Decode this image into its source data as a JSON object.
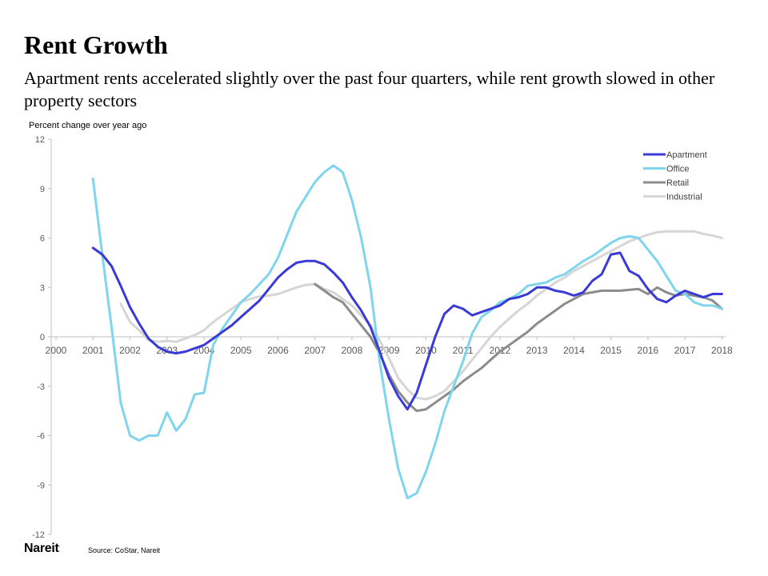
{
  "header": {
    "title": "Rent Growth",
    "subtitle": "Apartment rents accelerated slightly over the past four quarters, while rent growth slowed in other property sectors"
  },
  "footer": {
    "logo_text": "Nareit",
    "logo_mark": ".",
    "source": "Source: CoStar, Nareit"
  },
  "chart_data": {
    "type": "line",
    "title": "",
    "ylabel": "Percent change over year ago",
    "xlabel": "",
    "xlim": [
      2000,
      2018.1
    ],
    "ylim": [
      -12,
      12
    ],
    "x_ticks": [
      2000,
      2001,
      2002,
      2003,
      2004,
      2005,
      2006,
      2007,
      2008,
      2009,
      2010,
      2011,
      2012,
      2013,
      2014,
      2015,
      2016,
      2017,
      2018
    ],
    "y_ticks": [
      12,
      9,
      6,
      3,
      0,
      -3,
      -6,
      -9,
      -12
    ],
    "grid": false,
    "legend_position": "top-right",
    "series": [
      {
        "name": "Apartment",
        "color": "#3a3ad6",
        "x": [
          2001.0,
          2001.25,
          2001.5,
          2001.75,
          2002.0,
          2002.25,
          2002.5,
          2002.75,
          2003.0,
          2003.25,
          2003.5,
          2003.75,
          2004.0,
          2004.25,
          2004.5,
          2004.75,
          2005.0,
          2005.25,
          2005.5,
          2005.75,
          2006.0,
          2006.25,
          2006.5,
          2006.75,
          2007.0,
          2007.25,
          2007.5,
          2007.75,
          2008.0,
          2008.25,
          2008.5,
          2008.75,
          2009.0,
          2009.25,
          2009.5,
          2009.75,
          2010.0,
          2010.25,
          2010.5,
          2010.75,
          2011.0,
          2011.25,
          2011.5,
          2011.75,
          2012.0,
          2012.25,
          2012.5,
          2012.75,
          2013.0,
          2013.25,
          2013.5,
          2013.75,
          2014.0,
          2014.25,
          2014.5,
          2014.75,
          2015.0,
          2015.25,
          2015.5,
          2015.75,
          2016.0,
          2016.25,
          2016.5,
          2016.75,
          2017.0,
          2017.25,
          2017.5,
          2017.75,
          2018.0
        ],
        "values": [
          5.4,
          5.0,
          4.3,
          3.1,
          1.8,
          0.8,
          -0.1,
          -0.6,
          -0.9,
          -1.0,
          -0.9,
          -0.7,
          -0.5,
          -0.1,
          0.3,
          0.7,
          1.2,
          1.7,
          2.2,
          2.9,
          3.6,
          4.1,
          4.5,
          4.6,
          4.6,
          4.4,
          3.9,
          3.3,
          2.4,
          1.6,
          0.6,
          -0.9,
          -2.5,
          -3.6,
          -4.4,
          -3.4,
          -1.7,
          0.0,
          1.4,
          1.9,
          1.7,
          1.3,
          1.5,
          1.7,
          1.9,
          2.3,
          2.4,
          2.6,
          3.0,
          3.0,
          2.8,
          2.7,
          2.5,
          2.7,
          3.4,
          3.8,
          5.0,
          5.1,
          4.0,
          3.7,
          2.9,
          2.3,
          2.1,
          2.5,
          2.8,
          2.6,
          2.4,
          2.6,
          2.6
        ]
      },
      {
        "name": "Office",
        "color": "#7fd6ec",
        "x": [
          2001.0,
          2001.25,
          2001.5,
          2001.75,
          2002.0,
          2002.25,
          2002.5,
          2002.75,
          2003.0,
          2003.25,
          2003.5,
          2003.75,
          2004.0,
          2004.25,
          2004.5,
          2004.75,
          2005.0,
          2005.25,
          2005.5,
          2005.75,
          2006.0,
          2006.25,
          2006.5,
          2006.75,
          2007.0,
          2007.25,
          2007.5,
          2007.75,
          2008.0,
          2008.25,
          2008.5,
          2008.75,
          2009.0,
          2009.25,
          2009.5,
          2009.75,
          2010.0,
          2010.25,
          2010.5,
          2010.75,
          2011.0,
          2011.25,
          2011.5,
          2011.75,
          2012.0,
          2012.25,
          2012.5,
          2012.75,
          2013.0,
          2013.25,
          2013.5,
          2013.75,
          2014.0,
          2014.25,
          2014.5,
          2014.75,
          2015.0,
          2015.25,
          2015.5,
          2015.75,
          2016.0,
          2016.25,
          2016.5,
          2016.75,
          2017.0,
          2017.25,
          2017.5,
          2017.75,
          2018.0
        ],
        "values": [
          9.6,
          5.0,
          0.6,
          -4.0,
          -6.0,
          -6.3,
          -6.0,
          -6.0,
          -4.6,
          -5.7,
          -5.0,
          -3.5,
          -3.4,
          -0.5,
          0.5,
          1.3,
          2.1,
          2.6,
          3.2,
          3.8,
          4.8,
          6.2,
          7.6,
          8.5,
          9.4,
          10.0,
          10.4,
          10.0,
          8.3,
          6.0,
          3.0,
          -1.5,
          -5.0,
          -8.0,
          -9.8,
          -9.5,
          -8.2,
          -6.5,
          -4.5,
          -3.0,
          -1.5,
          0.2,
          1.2,
          1.6,
          2.1,
          2.3,
          2.6,
          3.1,
          3.2,
          3.3,
          3.6,
          3.8,
          4.2,
          4.6,
          4.9,
          5.3,
          5.7,
          6.0,
          6.1,
          6.0,
          5.3,
          4.6,
          3.7,
          2.8,
          2.6,
          2.1,
          1.9,
          1.9,
          1.7
        ]
      },
      {
        "name": "Retail",
        "color": "#8c8c8c",
        "x": [
          2007.0,
          2007.25,
          2007.5,
          2007.75,
          2008.0,
          2008.25,
          2008.5,
          2008.75,
          2009.0,
          2009.25,
          2009.5,
          2009.75,
          2010.0,
          2010.25,
          2010.5,
          2010.75,
          2011.0,
          2011.25,
          2011.5,
          2011.75,
          2012.0,
          2012.25,
          2012.5,
          2012.75,
          2013.0,
          2013.25,
          2013.5,
          2013.75,
          2014.0,
          2014.25,
          2014.5,
          2014.75,
          2015.0,
          2015.25,
          2015.5,
          2015.75,
          2016.0,
          2016.25,
          2016.5,
          2016.75,
          2017.0,
          2017.25,
          2017.5,
          2017.75,
          2018.0
        ],
        "values": [
          3.2,
          2.8,
          2.4,
          2.1,
          1.4,
          0.7,
          0.0,
          -1.0,
          -2.3,
          -3.3,
          -4.0,
          -4.5,
          -4.4,
          -4.0,
          -3.6,
          -3.2,
          -2.7,
          -2.3,
          -1.9,
          -1.4,
          -0.9,
          -0.5,
          -0.1,
          0.3,
          0.8,
          1.2,
          1.6,
          2.0,
          2.3,
          2.6,
          2.7,
          2.8,
          2.8,
          2.8,
          2.85,
          2.9,
          2.6,
          3.0,
          2.7,
          2.5,
          2.6,
          2.5,
          2.4,
          2.2,
          1.7
        ]
      },
      {
        "name": "Industrial",
        "color": "#d6d6d6",
        "x": [
          2001.75,
          2002.0,
          2002.25,
          2002.5,
          2002.75,
          2003.0,
          2003.25,
          2003.5,
          2003.75,
          2004.0,
          2004.25,
          2004.5,
          2004.75,
          2005.0,
          2005.25,
          2005.5,
          2005.75,
          2006.0,
          2006.25,
          2006.5,
          2006.75,
          2007.0,
          2007.25,
          2007.5,
          2007.75,
          2008.0,
          2008.25,
          2008.5,
          2008.75,
          2009.0,
          2009.25,
          2009.5,
          2009.75,
          2010.0,
          2010.25,
          2010.5,
          2010.75,
          2011.0,
          2011.25,
          2011.5,
          2011.75,
          2012.0,
          2012.25,
          2012.5,
          2012.75,
          2013.0,
          2013.25,
          2013.5,
          2013.75,
          2014.0,
          2014.25,
          2014.5,
          2014.75,
          2015.0,
          2015.25,
          2015.5,
          2015.75,
          2016.0,
          2016.25,
          2016.5,
          2016.75,
          2017.0,
          2017.25,
          2017.5,
          2017.75,
          2018.0
        ],
        "values": [
          2.0,
          0.9,
          0.4,
          -0.2,
          -0.3,
          -0.25,
          -0.3,
          -0.1,
          0.1,
          0.4,
          0.9,
          1.3,
          1.7,
          2.1,
          2.3,
          2.45,
          2.5,
          2.6,
          2.8,
          3.0,
          3.15,
          3.2,
          2.9,
          2.7,
          2.3,
          1.9,
          1.3,
          0.7,
          -0.2,
          -1.3,
          -2.5,
          -3.2,
          -3.7,
          -3.8,
          -3.6,
          -3.3,
          -2.7,
          -2.1,
          -1.4,
          -0.7,
          0.0,
          0.6,
          1.1,
          1.6,
          2.0,
          2.5,
          2.9,
          3.3,
          3.6,
          4.0,
          4.3,
          4.6,
          4.9,
          5.2,
          5.5,
          5.8,
          6.0,
          6.2,
          6.35,
          6.4,
          6.4,
          6.4,
          6.4,
          6.25,
          6.15,
          6.0
        ]
      }
    ]
  }
}
